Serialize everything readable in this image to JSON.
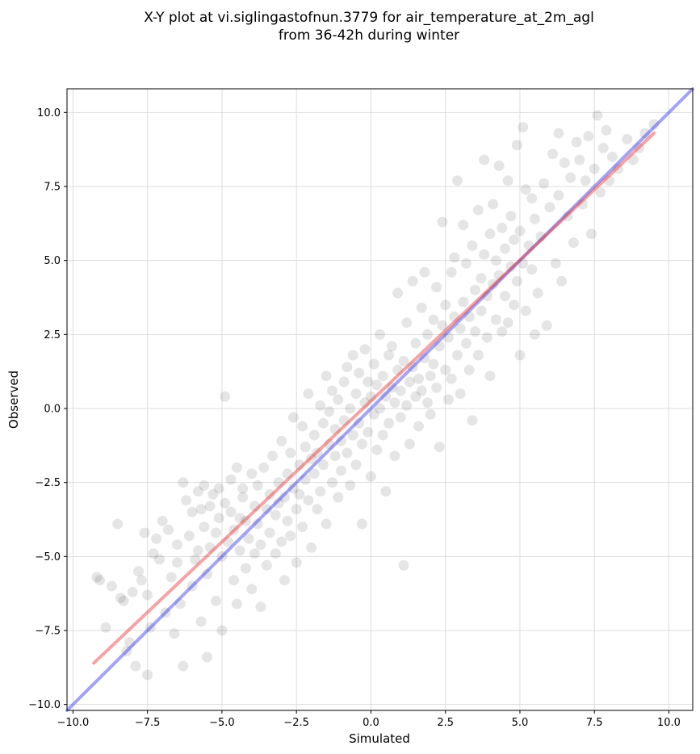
{
  "chart_data": {
    "type": "scatter",
    "title_line1": "X-Y plot at vi.siglingastofnun.3779 for air_temperature_at_2m_agl",
    "title_line2": "from 36-42h during winter",
    "xlabel": "Simulated",
    "ylabel": "Observed",
    "xlim": [
      -10.2,
      10.8
    ],
    "ylim": [
      -10.2,
      10.8
    ],
    "xticks": [
      -10.0,
      -7.5,
      -5.0,
      -2.5,
      0.0,
      2.5,
      5.0,
      7.5,
      10.0
    ],
    "yticks": [
      -10.0,
      -7.5,
      -5.0,
      -2.5,
      0.0,
      2.5,
      5.0,
      7.5,
      10.0
    ],
    "xtick_labels": [
      "−10.0",
      "−7.5",
      "−5.0",
      "−2.5",
      "0.0",
      "2.5",
      "5.0",
      "7.5",
      "10.0"
    ],
    "ytick_labels": [
      "−10.0",
      "−7.5",
      "−5.0",
      "−2.5",
      "0.0",
      "2.5",
      "5.0",
      "7.5",
      "10.0"
    ],
    "grid": true,
    "colors": {
      "points": "#000000",
      "regression_line": "#ee3333",
      "identity_line": "#3333ee"
    },
    "regression_line": {
      "x": [
        -9.3,
        9.5
      ],
      "y": [
        -8.6,
        9.3
      ]
    },
    "identity_line": {
      "x": [
        -10.2,
        10.8
      ],
      "y": [
        -10.2,
        10.8
      ]
    },
    "points": [
      [
        -9.2,
        -5.7
      ],
      [
        -9.1,
        -5.8
      ],
      [
        -8.7,
        -6.0
      ],
      [
        -8.5,
        -3.9
      ],
      [
        -8.4,
        -6.4
      ],
      [
        -8.3,
        -6.5
      ],
      [
        -8.2,
        -8.2
      ],
      [
        -8.1,
        -7.9
      ],
      [
        -7.9,
        -8.7
      ],
      [
        -7.8,
        -5.5
      ],
      [
        -7.7,
        -5.8
      ],
      [
        -7.6,
        -4.2
      ],
      [
        -7.5,
        -6.3
      ],
      [
        -7.5,
        -9.0
      ],
      [
        -7.4,
        -7.4
      ],
      [
        -7.2,
        -4.4
      ],
      [
        -7.1,
        -5.1
      ],
      [
        -7.0,
        -3.8
      ],
      [
        -6.9,
        -6.9
      ],
      [
        -6.8,
        -4.1
      ],
      [
        -6.7,
        -5.7
      ],
      [
        -6.6,
        -7.6
      ],
      [
        -6.5,
        -4.6
      ],
      [
        -6.5,
        -5.2
      ],
      [
        -6.4,
        -6.6
      ],
      [
        -6.3,
        -2.5
      ],
      [
        -6.3,
        -8.7
      ],
      [
        -6.2,
        -3.1
      ],
      [
        -6.1,
        -4.3
      ],
      [
        -6.0,
        -6.0
      ],
      [
        -6.0,
        -3.5
      ],
      [
        -5.9,
        -5.1
      ],
      [
        -5.8,
        -2.8
      ],
      [
        -5.8,
        -4.8
      ],
      [
        -5.7,
        -3.4
      ],
      [
        -5.7,
        -7.2
      ],
      [
        -5.6,
        -4.0
      ],
      [
        -5.6,
        -2.6
      ],
      [
        -5.5,
        -8.4
      ],
      [
        -5.5,
        -5.6
      ],
      [
        -5.4,
        -3.3
      ],
      [
        -5.4,
        -4.7
      ],
      [
        -5.3,
        -2.9
      ],
      [
        -5.2,
        -4.2
      ],
      [
        -5.2,
        -6.5
      ],
      [
        -5.1,
        -3.7
      ],
      [
        -5.1,
        -2.7
      ],
      [
        -5.0,
        -5.0
      ],
      [
        -5.0,
        -7.5
      ],
      [
        -4.9,
        -3.2
      ],
      [
        -4.9,
        0.4
      ],
      [
        -4.8,
        -4.5
      ],
      [
        -4.7,
        -3.5
      ],
      [
        -4.7,
        -2.4
      ],
      [
        -4.6,
        -5.8
      ],
      [
        -4.6,
        -4.1
      ],
      [
        -4.5,
        -2.0
      ],
      [
        -4.5,
        -6.6
      ],
      [
        -4.4,
        -3.7
      ],
      [
        -4.4,
        -4.8
      ],
      [
        -4.3,
        -3.0
      ],
      [
        -4.3,
        -2.7
      ],
      [
        -4.2,
        -5.4
      ],
      [
        -4.2,
        -3.8
      ],
      [
        -4.1,
        -4.4
      ],
      [
        -4.0,
        -2.2
      ],
      [
        -4.0,
        -6.1
      ],
      [
        -3.9,
        -3.3
      ],
      [
        -3.9,
        -4.9
      ],
      [
        -3.8,
        -2.6
      ],
      [
        -3.8,
        -3.9
      ],
      [
        -3.7,
        -6.7
      ],
      [
        -3.7,
        -4.6
      ],
      [
        -3.6,
        -2.0
      ],
      [
        -3.5,
        -3.4
      ],
      [
        -3.5,
        -5.3
      ],
      [
        -3.4,
        -2.9
      ],
      [
        -3.4,
        -4.2
      ],
      [
        -3.3,
        -1.6
      ],
      [
        -3.2,
        -3.6
      ],
      [
        -3.2,
        -4.9
      ],
      [
        -3.1,
        -2.5
      ],
      [
        -3.1,
        -3.2
      ],
      [
        -3.0,
        -1.1
      ],
      [
        -3.0,
        -4.5
      ],
      [
        -2.9,
        -3.0
      ],
      [
        -2.9,
        -5.8
      ],
      [
        -2.8,
        -2.2
      ],
      [
        -2.8,
        -3.8
      ],
      [
        -2.7,
        -1.5
      ],
      [
        -2.7,
        -4.3
      ],
      [
        -2.6,
        -2.7
      ],
      [
        -2.6,
        -0.3
      ],
      [
        -2.5,
        -3.4
      ],
      [
        -2.5,
        -5.2
      ],
      [
        -2.4,
        -1.9
      ],
      [
        -2.4,
        -2.9
      ],
      [
        -2.3,
        -0.6
      ],
      [
        -2.3,
        -4.0
      ],
      [
        -2.2,
        -1.3
      ],
      [
        -2.2,
        -2.4
      ],
      [
        -2.1,
        -3.1
      ],
      [
        -2.1,
        0.5
      ],
      [
        -2.0,
        -1.7
      ],
      [
        -2.0,
        -4.7
      ],
      [
        -1.9,
        -0.9
      ],
      [
        -1.9,
        -2.2
      ],
      [
        -1.8,
        -1.5
      ],
      [
        -1.8,
        -3.4
      ],
      [
        -1.7,
        0.1
      ],
      [
        -1.7,
        -2.8
      ],
      [
        -1.6,
        -0.5
      ],
      [
        -1.6,
        -1.9
      ],
      [
        -1.5,
        1.1
      ],
      [
        -1.5,
        -3.9
      ],
      [
        -1.4,
        -1.2
      ],
      [
        -1.4,
        -0.1
      ],
      [
        -1.3,
        -2.5
      ],
      [
        -1.3,
        0.6
      ],
      [
        -1.2,
        -1.6
      ],
      [
        -1.2,
        -0.7
      ],
      [
        -1.1,
        -3.0
      ],
      [
        -1.1,
        0.3
      ],
      [
        -1.0,
        -1.1
      ],
      [
        -1.0,
        -2.1
      ],
      [
        -0.9,
        0.9
      ],
      [
        -0.9,
        -0.4
      ],
      [
        -0.8,
        -1.5
      ],
      [
        -0.8,
        1.4
      ],
      [
        -0.7,
        -2.6
      ],
      [
        -0.7,
        0.0
      ],
      [
        -0.6,
        -0.9
      ],
      [
        -0.6,
        1.8
      ],
      [
        -0.5,
        -1.9
      ],
      [
        -0.5,
        0.5
      ],
      [
        -0.4,
        -0.5
      ],
      [
        -0.4,
        1.2
      ],
      [
        -0.3,
        -3.9
      ],
      [
        -0.3,
        -1.2
      ],
      [
        -0.2,
        0.2
      ],
      [
        -0.2,
        2.0
      ],
      [
        -0.1,
        -0.8
      ],
      [
        -0.1,
        0.9
      ],
      [
        0.0,
        -2.3
      ],
      [
        0.0,
        0.4
      ],
      [
        0.1,
        1.5
      ],
      [
        0.1,
        -0.2
      ],
      [
        0.2,
        -1.4
      ],
      [
        0.2,
        0.8
      ],
      [
        0.3,
        2.5
      ],
      [
        0.3,
        0.0
      ],
      [
        0.4,
        -0.9
      ],
      [
        0.4,
        1.1
      ],
      [
        0.5,
        0.4
      ],
      [
        0.5,
        -2.8
      ],
      [
        0.6,
        1.8
      ],
      [
        0.6,
        -0.5
      ],
      [
        0.7,
        0.7
      ],
      [
        0.7,
        2.1
      ],
      [
        0.8,
        -1.6
      ],
      [
        0.8,
        0.2
      ],
      [
        0.9,
        1.3
      ],
      [
        0.9,
        3.9
      ],
      [
        1.0,
        0.6
      ],
      [
        1.0,
        -0.3
      ],
      [
        1.1,
        1.6
      ],
      [
        1.1,
        -5.3
      ],
      [
        1.2,
        0.1
      ],
      [
        1.2,
        2.9
      ],
      [
        1.3,
        0.9
      ],
      [
        1.3,
        -1.2
      ],
      [
        1.4,
        1.4
      ],
      [
        1.4,
        4.3
      ],
      [
        1.5,
        0.4
      ],
      [
        1.5,
        2.2
      ],
      [
        1.6,
        -0.6
      ],
      [
        1.6,
        1.0
      ],
      [
        1.7,
        3.4
      ],
      [
        1.7,
        0.6
      ],
      [
        1.8,
        1.7
      ],
      [
        1.8,
        4.6
      ],
      [
        1.9,
        0.2
      ],
      [
        1.9,
        2.5
      ],
      [
        2.0,
        1.1
      ],
      [
        2.0,
        -0.2
      ],
      [
        2.1,
        3.0
      ],
      [
        2.1,
        1.5
      ],
      [
        2.2,
        0.7
      ],
      [
        2.2,
        4.1
      ],
      [
        2.3,
        2.1
      ],
      [
        2.3,
        -1.3
      ],
      [
        2.4,
        2.8
      ],
      [
        2.4,
        6.3
      ],
      [
        2.5,
        1.3
      ],
      [
        2.5,
        3.5
      ],
      [
        2.6,
        0.3
      ],
      [
        2.6,
        2.4
      ],
      [
        2.7,
        4.6
      ],
      [
        2.7,
        1.0
      ],
      [
        2.8,
        3.1
      ],
      [
        2.8,
        5.1
      ],
      [
        2.9,
        1.8
      ],
      [
        2.9,
        7.7
      ],
      [
        3.0,
        2.7
      ],
      [
        3.0,
        0.5
      ],
      [
        3.1,
        3.6
      ],
      [
        3.1,
        6.2
      ],
      [
        3.2,
        2.2
      ],
      [
        3.2,
        4.9
      ],
      [
        3.3,
        1.3
      ],
      [
        3.3,
        3.1
      ],
      [
        3.4,
        5.5
      ],
      [
        3.4,
        -0.4
      ],
      [
        3.5,
        4.0
      ],
      [
        3.5,
        2.6
      ],
      [
        3.6,
        6.7
      ],
      [
        3.6,
        1.8
      ],
      [
        3.7,
        4.4
      ],
      [
        3.7,
        3.3
      ],
      [
        3.8,
        8.4
      ],
      [
        3.8,
        5.2
      ],
      [
        3.9,
        2.4
      ],
      [
        3.9,
        3.8
      ],
      [
        4.0,
        5.9
      ],
      [
        4.0,
        1.1
      ],
      [
        4.1,
        4.2
      ],
      [
        4.1,
        6.9
      ],
      [
        4.2,
        3.0
      ],
      [
        4.2,
        5.0
      ],
      [
        4.3,
        8.2
      ],
      [
        4.3,
        4.5
      ],
      [
        4.4,
        2.6
      ],
      [
        4.4,
        6.1
      ],
      [
        4.5,
        3.8
      ],
      [
        4.5,
        5.4
      ],
      [
        4.6,
        7.7
      ],
      [
        4.6,
        2.9
      ],
      [
        4.7,
        4.8
      ],
      [
        4.7,
        6.5
      ],
      [
        4.8,
        3.5
      ],
      [
        4.8,
        5.7
      ],
      [
        4.9,
        8.9
      ],
      [
        4.9,
        4.3
      ],
      [
        5.0,
        1.8
      ],
      [
        5.0,
        6.0
      ],
      [
        5.1,
        4.9
      ],
      [
        5.1,
        9.5
      ],
      [
        5.2,
        3.3
      ],
      [
        5.2,
        7.4
      ],
      [
        5.3,
        5.5
      ],
      [
        5.4,
        4.7
      ],
      [
        5.4,
        7.1
      ],
      [
        5.5,
        2.5
      ],
      [
        5.5,
        6.4
      ],
      [
        5.6,
        3.9
      ],
      [
        5.7,
        5.8
      ],
      [
        5.8,
        7.6
      ],
      [
        5.9,
        2.8
      ],
      [
        6.0,
        6.8
      ],
      [
        6.1,
        8.6
      ],
      [
        6.2,
        4.9
      ],
      [
        6.3,
        9.3
      ],
      [
        6.3,
        7.2
      ],
      [
        6.4,
        4.3
      ],
      [
        6.5,
        8.3
      ],
      [
        6.6,
        6.5
      ],
      [
        6.7,
        7.8
      ],
      [
        6.8,
        5.6
      ],
      [
        6.9,
        9.0
      ],
      [
        7.0,
        8.4
      ],
      [
        7.1,
        6.9
      ],
      [
        7.2,
        7.7
      ],
      [
        7.3,
        9.2
      ],
      [
        7.4,
        5.9
      ],
      [
        7.5,
        8.1
      ],
      [
        7.6,
        9.9
      ],
      [
        7.7,
        7.3
      ],
      [
        7.8,
        8.8
      ],
      [
        7.9,
        9.4
      ],
      [
        8.0,
        7.7
      ],
      [
        8.1,
        8.5
      ],
      [
        8.3,
        8.1
      ],
      [
        8.6,
        9.1
      ],
      [
        8.8,
        8.4
      ],
      [
        9.0,
        8.8
      ],
      [
        9.2,
        9.3
      ],
      [
        9.5,
        9.6
      ],
      [
        -8.9,
        -7.4
      ],
      [
        -8.0,
        -6.2
      ],
      [
        -7.3,
        -4.9
      ]
    ]
  }
}
